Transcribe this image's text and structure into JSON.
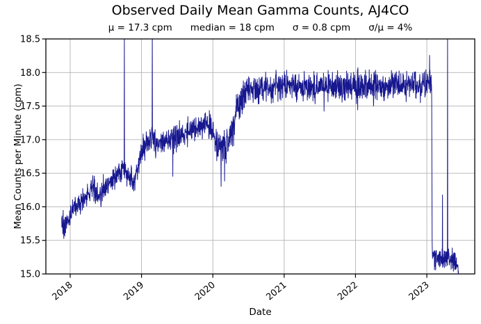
{
  "chart_data": {
    "type": "line",
    "title": "Observed Daily Mean Gamma Counts, AJ4CO",
    "stats_line": {
      "mu": "μ = 17.3 cpm",
      "median": "median = 18 cpm",
      "sigma": "σ = 0.8 cpm",
      "sigma_over_mu": "σ/μ = 4%"
    },
    "xlabel": "Date",
    "ylabel": "Mean Counts per Minute (cpm)",
    "xlim": [
      2017.659,
      2023.672
    ],
    "ylim": [
      15.0,
      18.5
    ],
    "xticks": [
      2018,
      2019,
      2020,
      2021,
      2022,
      2023
    ],
    "yticks": [
      15.0,
      15.5,
      16.0,
      16.5,
      17.0,
      17.5,
      18.0,
      18.5
    ],
    "grid": true,
    "legend": "none",
    "line_color": "#17178f",
    "grid_color": "#b3b3b3",
    "axis_color": "#000000",
    "background_color": "#ffffff",
    "series": {
      "name": "observed daily mean gamma counts (cpm)",
      "points_per_year": 365,
      "trend_anchors": [
        [
          2017.88,
          15.8
        ],
        [
          2017.92,
          15.68
        ],
        [
          2017.97,
          15.82
        ],
        [
          2018.03,
          15.92
        ],
        [
          2018.1,
          16.02
        ],
        [
          2018.18,
          16.1
        ],
        [
          2018.27,
          16.22
        ],
        [
          2018.33,
          16.28
        ],
        [
          2018.4,
          16.17
        ],
        [
          2018.47,
          16.25
        ],
        [
          2018.55,
          16.37
        ],
        [
          2018.65,
          16.48
        ],
        [
          2018.75,
          16.57
        ],
        [
          2018.82,
          16.5
        ],
        [
          2018.88,
          16.38
        ],
        [
          2018.94,
          16.5
        ],
        [
          2019.0,
          16.82
        ],
        [
          2019.06,
          16.95
        ],
        [
          2019.15,
          17.0
        ],
        [
          2019.25,
          16.95
        ],
        [
          2019.35,
          17.0
        ],
        [
          2019.5,
          17.05
        ],
        [
          2019.65,
          17.12
        ],
        [
          2019.8,
          17.2
        ],
        [
          2019.92,
          17.26
        ],
        [
          2020.0,
          17.12
        ],
        [
          2020.06,
          16.95
        ],
        [
          2020.13,
          16.88
        ],
        [
          2020.2,
          16.95
        ],
        [
          2020.27,
          17.12
        ],
        [
          2020.33,
          17.4
        ],
        [
          2020.4,
          17.62
        ],
        [
          2020.5,
          17.73
        ],
        [
          2020.65,
          17.78
        ],
        [
          2020.9,
          17.8
        ],
        [
          2021.3,
          17.79
        ],
        [
          2021.7,
          17.8
        ],
        [
          2022.1,
          17.8
        ],
        [
          2022.5,
          17.8
        ],
        [
          2022.9,
          17.8
        ],
        [
          2023.0,
          17.83
        ],
        [
          2023.05,
          17.88
        ],
        [
          2023.068,
          17.85
        ],
        [
          2023.075,
          15.35
        ],
        [
          2023.09,
          15.25
        ],
        [
          2023.15,
          15.22
        ],
        [
          2023.22,
          15.25
        ],
        [
          2023.3,
          15.24
        ],
        [
          2023.38,
          15.22
        ],
        [
          2023.43,
          15.15
        ],
        [
          2023.447,
          15.0
        ]
      ],
      "noise": {
        "seed": 20,
        "segments": [
          {
            "until": 2019.0,
            "amp": 0.17
          },
          {
            "until": 2020.05,
            "amp": 0.19
          },
          {
            "until": 2020.3,
            "amp": 0.28
          },
          {
            "until": 2023.068,
            "amp": 0.21
          },
          {
            "until": 2023.45,
            "amp": 0.15
          }
        ]
      },
      "spikes": [
        [
          2018.76,
          18.6
        ],
        [
          2019.15,
          18.62
        ],
        [
          2019.44,
          16.45
        ],
        [
          2020.115,
          16.3
        ],
        [
          2020.165,
          16.38
        ],
        [
          2021.56,
          17.42
        ],
        [
          2022.03,
          17.44
        ],
        [
          2023.04,
          18.26
        ],
        [
          2023.22,
          16.18
        ],
        [
          2023.29,
          18.6
        ]
      ]
    }
  }
}
